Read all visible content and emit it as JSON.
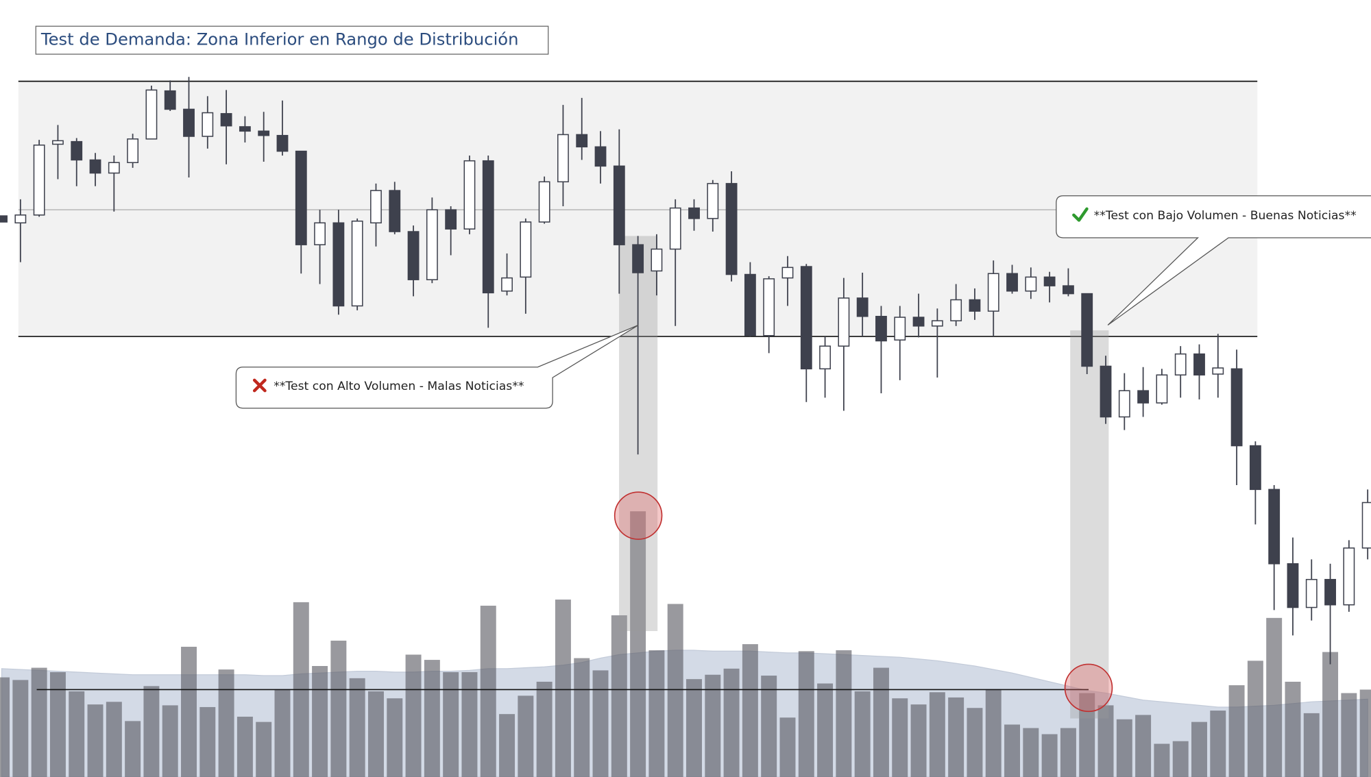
{
  "chart_data": {
    "type": "candlestick",
    "title": "Test de Demanda: Zona Inferior en Rango de Distribución",
    "open": [
      642,
      634,
      643,
      724,
      727,
      706,
      691,
      703,
      730,
      785,
      764,
      733,
      759,
      744,
      739,
      734,
      716,
      609,
      634,
      539,
      634,
      671,
      624,
      569,
      649,
      627,
      705,
      556,
      572,
      635,
      681,
      735,
      721,
      699,
      609,
      579,
      604,
      651,
      639,
      679,
      575,
      505,
      571,
      584,
      467,
      493,
      548,
      527,
      500,
      526,
      516,
      522,
      546,
      533,
      576,
      556,
      572,
      562,
      553,
      470,
      412,
      442,
      428,
      460,
      484,
      461,
      467,
      379,
      329,
      244,
      194,
      226,
      197,
      262
    ],
    "high": [
      642,
      661,
      729,
      746,
      731,
      714,
      711,
      736,
      791,
      797,
      801,
      779,
      786,
      756,
      761,
      774,
      716,
      649,
      649,
      639,
      679,
      681,
      631,
      663,
      653,
      711,
      711,
      599,
      639,
      687,
      769,
      777,
      739,
      741,
      619,
      621,
      661,
      661,
      683,
      693,
      589,
      573,
      596,
      587,
      504,
      571,
      577,
      539,
      539,
      553,
      536,
      564,
      559,
      591,
      586,
      583,
      578,
      582,
      553,
      482,
      462,
      469,
      467,
      493,
      495,
      507,
      489,
      384,
      334,
      274,
      249,
      244,
      271,
      329
    ],
    "low": [
      635,
      589,
      641,
      684,
      676,
      676,
      647,
      697,
      730,
      762,
      686,
      719,
      701,
      726,
      704,
      711,
      576,
      564,
      529,
      534,
      607,
      621,
      550,
      565,
      597,
      621,
      514,
      551,
      530,
      633,
      653,
      706,
      679,
      553,
      369,
      551,
      516,
      625,
      624,
      567,
      504,
      485,
      539,
      429,
      434,
      419,
      504,
      439,
      454,
      503,
      457,
      516,
      523,
      504,
      553,
      547,
      543,
      550,
      461,
      404,
      397,
      412,
      426,
      434,
      432,
      434,
      334,
      289,
      191,
      162,
      179,
      129,
      189,
      249
    ],
    "close": [
      635,
      643,
      723,
      728,
      706,
      691,
      703,
      730,
      786,
      764,
      733,
      760,
      745,
      739,
      734,
      716,
      609,
      634,
      539,
      636,
      671,
      624,
      569,
      649,
      627,
      705,
      554,
      571,
      635,
      681,
      735,
      721,
      699,
      609,
      577,
      604,
      651,
      639,
      679,
      575,
      505,
      570,
      583,
      467,
      493,
      548,
      527,
      499,
      526,
      516,
      522,
      546,
      533,
      576,
      556,
      572,
      562,
      553,
      470,
      412,
      442,
      428,
      460,
      484,
      460,
      468,
      379,
      329,
      244,
      194,
      226,
      197,
      262,
      314
    ],
    "volume": [
      114,
      111,
      125,
      120,
      98,
      83,
      86,
      64,
      104,
      82,
      149,
      80,
      123,
      69,
      63,
      100,
      200,
      127,
      156,
      113,
      98,
      90,
      140,
      134,
      120,
      120,
      196,
      72,
      93,
      109,
      203,
      136,
      122,
      185,
      304,
      145,
      198,
      112,
      117,
      124,
      152,
      116,
      68,
      144,
      107,
      145,
      98,
      125,
      90,
      83,
      97,
      91,
      79,
      100,
      60,
      56,
      49,
      56,
      96,
      82,
      66,
      71,
      38,
      41,
      63,
      76,
      105,
      133,
      182,
      109,
      73,
      143,
      96,
      100
    ],
    "volume_ma": [
      124,
      123,
      122,
      121,
      120,
      119,
      118,
      117,
      117,
      117,
      117,
      117,
      117,
      117,
      116,
      116,
      118,
      119,
      120,
      121,
      121,
      120,
      120,
      121,
      121,
      122,
      124,
      124,
      125,
      126,
      128,
      131,
      136,
      140,
      142,
      144,
      145,
      145,
      144,
      144,
      144,
      143,
      142,
      142,
      141,
      140,
      139,
      138,
      137,
      135,
      133,
      130,
      127,
      123,
      119,
      114,
      109,
      104,
      99,
      96,
      92,
      88,
      86,
      84,
      82,
      80,
      80,
      81,
      82,
      84,
      86,
      87,
      88,
      89
    ],
    "ylim": [
      0,
      889
    ],
    "y2lim": [
      0,
      889
    ],
    "zone": {
      "top": 796,
      "mid": 649,
      "bottom": 504
    },
    "volume_level": 100,
    "up_color": "#ffffff",
    "down_color": "#3e414d",
    "volume_color": "#5a5a62",
    "volume_ma_color": "#d3dae6",
    "annotations": [
      {
        "text": "**Test con Alto Volumen - Malas Noticias**"
      },
      {
        "text": "**Test con Bajo Volumen - Buenas Noticias**"
      }
    ]
  }
}
